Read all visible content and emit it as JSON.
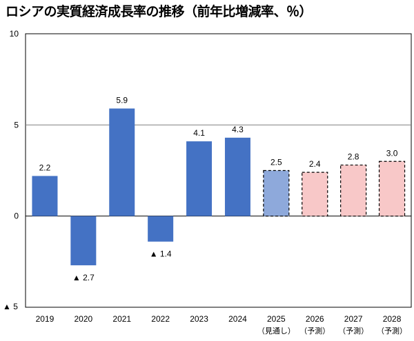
{
  "chart_data": {
    "type": "bar",
    "title": "ロシアの実質経済成長率の推移（前年比増減率、％）",
    "xlabel": "",
    "ylabel": "",
    "ylim": [
      -5,
      10
    ],
    "yticks": [
      10,
      5,
      0
    ],
    "ytick_labels": [
      "10",
      "5",
      "0"
    ],
    "ymin_label": "▲ 5",
    "grid": true,
    "categories": [
      "2019",
      "2020",
      "2021",
      "2022",
      "2023",
      "2024",
      "2025",
      "2026",
      "2027",
      "2028"
    ],
    "sublabels": [
      "",
      "",
      "",
      "",
      "",
      "",
      "（見通し）",
      "（予測）",
      "（予測）",
      "（予測）"
    ],
    "values": [
      2.2,
      -2.7,
      5.9,
      -1.4,
      4.1,
      4.3,
      2.5,
      2.4,
      2.8,
      3.0
    ],
    "value_labels": [
      "2.2",
      "▲ 2.7",
      "5.9",
      "▲ 1.4",
      "4.1",
      "4.3",
      "2.5",
      "2.4",
      "2.8",
      "3.0"
    ],
    "bar_kind": [
      "actual",
      "actual",
      "actual",
      "actual",
      "actual",
      "actual",
      "outlook",
      "forecast",
      "forecast",
      "forecast"
    ],
    "colors": {
      "actual": "#4472C4",
      "outlook": "#8EA9DB",
      "forecast": "#F8C8C8",
      "grid": "#808080"
    }
  }
}
